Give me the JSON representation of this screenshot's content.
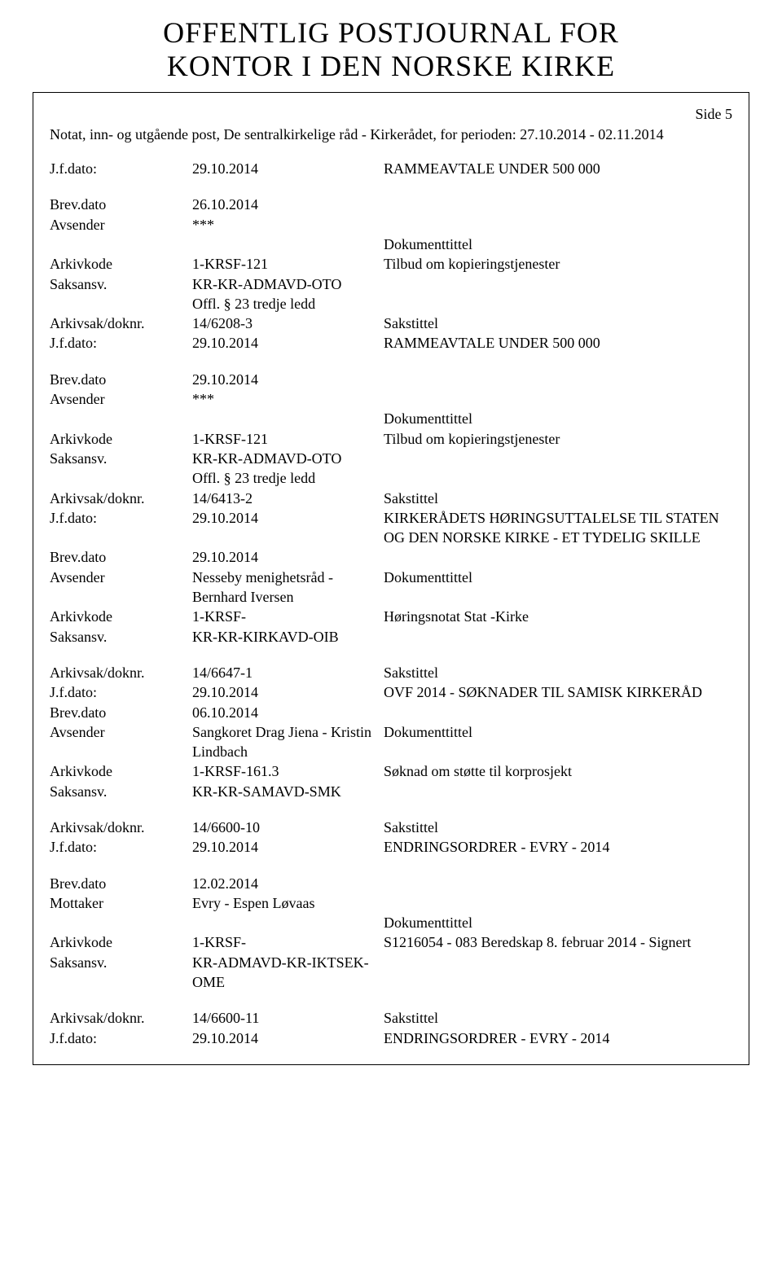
{
  "title_line1": "OFFENTLIG POSTJOURNAL FOR",
  "title_line2": "KONTOR I DEN NORSKE KIRKE",
  "side_label": "Side 5",
  "subtitle": "Notat, inn- og utgående post, De sentralkirkelige råd - Kirkerådet, for perioden: 27.10.2014 - 02.11.2014",
  "labels": {
    "jfdato": "J.f.dato:",
    "brevdato": "Brev.dato",
    "avsender": "Avsender",
    "mottaker": "Mottaker",
    "arkivkode": "Arkivkode",
    "saksansv": "Saksansv.",
    "arkivsak": "Arkivsak/doknr.",
    "dokumenttittel": "Dokumenttittel",
    "sakstittel": "Sakstittel"
  },
  "entries": [
    {
      "rows": [
        {
          "l": "jfdato",
          "m": "29.10.2014",
          "r": "RAMMEAVTALE UNDER 500 000"
        }
      ]
    },
    {
      "rows": [
        {
          "l": "brevdato",
          "m": "26.10.2014",
          "r": ""
        },
        {
          "l": "avsender",
          "m": "***",
          "r": ""
        },
        {
          "l": "",
          "m": "",
          "r": "Dokumenttittel"
        },
        {
          "l": "arkivkode",
          "m": "1-KRSF-121",
          "r": "Tilbud om kopieringstjenester"
        },
        {
          "l": "saksansv",
          "m": "KR-KR-ADMAVD-OTO",
          "r": ""
        },
        {
          "l": "",
          "m": "Offl. § 23 tredje ledd",
          "r": ""
        },
        {
          "l": "arkivsak",
          "m": "14/6208-3",
          "r": "Sakstittel"
        },
        {
          "l": "jfdato",
          "m": "29.10.2014",
          "r": "RAMMEAVTALE UNDER 500 000"
        }
      ]
    },
    {
      "rows": [
        {
          "l": "brevdato",
          "m": "29.10.2014",
          "r": ""
        },
        {
          "l": "avsender",
          "m": "***",
          "r": ""
        },
        {
          "l": "",
          "m": "",
          "r": "Dokumenttittel"
        },
        {
          "l": "arkivkode",
          "m": "1-KRSF-121",
          "r": "Tilbud om kopieringstjenester"
        },
        {
          "l": "saksansv",
          "m": "KR-KR-ADMAVD-OTO",
          "r": ""
        },
        {
          "l": "",
          "m": "Offl. § 23 tredje ledd",
          "r": ""
        },
        {
          "l": "arkivsak",
          "m": "14/6413-2",
          "r": "Sakstittel"
        },
        {
          "l": "jfdato",
          "m": "29.10.2014",
          "r": "KIRKERÅDETS HØRINGSUTTALELSE TIL STATEN OG DEN NORSKE KIRKE - ET TYDELIG SKILLE"
        },
        {
          "l": "brevdato",
          "m": "29.10.2014",
          "r": ""
        },
        {
          "l": "avsender",
          "m": "Nesseby menighetsråd - Bernhard Iversen",
          "r": "Dokumenttittel"
        },
        {
          "l": "arkivkode",
          "m": "1-KRSF-",
          "r": "Høringsnotat Stat -Kirke"
        },
        {
          "l": "saksansv",
          "m": "KR-KR-KIRKAVD-OIB",
          "r": ""
        }
      ]
    },
    {
      "rows": [
        {
          "l": "arkivsak",
          "m": "14/6647-1",
          "r": "Sakstittel"
        },
        {
          "l": "jfdato",
          "m": "29.10.2014",
          "r": "OVF 2014 - SØKNADER TIL SAMISK KIRKERÅD"
        },
        {
          "l": "brevdato",
          "m": "06.10.2014",
          "r": ""
        },
        {
          "l": "avsender",
          "m": "Sangkoret Drag Jiena - Kristin Lindbach",
          "r": "Dokumenttittel"
        },
        {
          "l": "arkivkode",
          "m": "1-KRSF-161.3",
          "r": "Søknad om støtte til korprosjekt"
        },
        {
          "l": "saksansv",
          "m": "KR-KR-SAMAVD-SMK",
          "r": ""
        }
      ]
    },
    {
      "rows": [
        {
          "l": "arkivsak",
          "m": "14/6600-10",
          "r": "Sakstittel"
        },
        {
          "l": "jfdato",
          "m": "29.10.2014",
          "r": "ENDRINGSORDRER - EVRY - 2014"
        }
      ]
    },
    {
      "rows": [
        {
          "l": "brevdato",
          "m": "12.02.2014",
          "r": ""
        },
        {
          "l": "mottaker",
          "m": "Evry - Espen Løvaas",
          "r": ""
        },
        {
          "l": "",
          "m": "",
          "r": "Dokumenttittel"
        },
        {
          "l": "arkivkode",
          "m": "1-KRSF-",
          "r": "S1216054 - 083 Beredskap 8. februar 2014 - Signert"
        },
        {
          "l": "saksansv",
          "m": "KR-ADMAVD-KR-IKTSEK-OME",
          "r": ""
        }
      ]
    },
    {
      "rows": [
        {
          "l": "arkivsak",
          "m": "14/6600-11",
          "r": "Sakstittel"
        },
        {
          "l": "jfdato",
          "m": "29.10.2014",
          "r": "ENDRINGSORDRER - EVRY - 2014"
        }
      ]
    }
  ]
}
